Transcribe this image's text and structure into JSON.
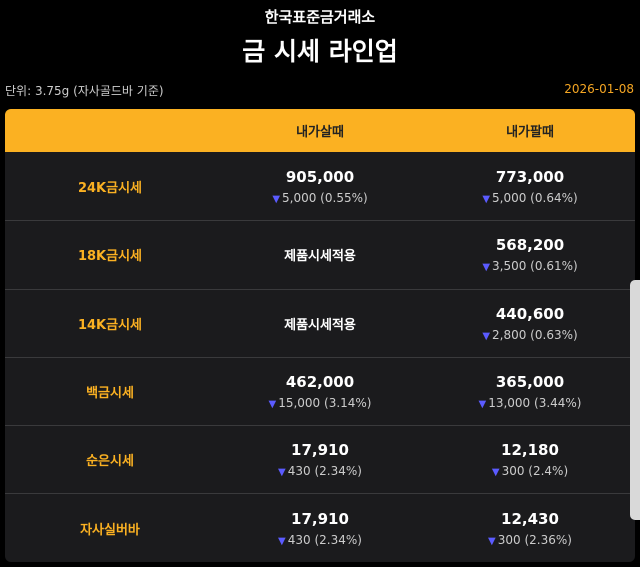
{
  "header": {
    "subtitle": "한국표준금거래소",
    "title": "금 시세 라인업",
    "unit": "단위: 3.75g (자사골드바 기준)",
    "date": "2026-01-08"
  },
  "table": {
    "columns": [
      "",
      "내가살때",
      "내가팔때"
    ],
    "colors": {
      "accent": "#fbb122",
      "down": "#5b5bff"
    },
    "rows": [
      {
        "label": "24K금시세",
        "buy": {
          "price": "905,000",
          "change": "5,000 (0.55%)"
        },
        "sell": {
          "price": "773,000",
          "change": "5,000 (0.64%)"
        }
      },
      {
        "label": "18K금시세",
        "buy": {
          "note": "제품시세적용"
        },
        "sell": {
          "price": "568,200",
          "change": "3,500 (0.61%)"
        }
      },
      {
        "label": "14K금시세",
        "buy": {
          "note": "제품시세적용"
        },
        "sell": {
          "price": "440,600",
          "change": "2,800 (0.63%)"
        }
      },
      {
        "label": "백금시세",
        "buy": {
          "price": "462,000",
          "change": "15,000 (3.14%)"
        },
        "sell": {
          "price": "365,000",
          "change": "13,000 (3.44%)"
        }
      },
      {
        "label": "순은시세",
        "buy": {
          "price": "17,910",
          "change": "430 (2.34%)"
        },
        "sell": {
          "price": "12,180",
          "change": "300 (2.4%)"
        }
      },
      {
        "label": "자사실버바",
        "buy": {
          "price": "17,910",
          "change": "430 (2.34%)"
        },
        "sell": {
          "price": "12,430",
          "change": "300 (2.36%)"
        }
      }
    ]
  }
}
